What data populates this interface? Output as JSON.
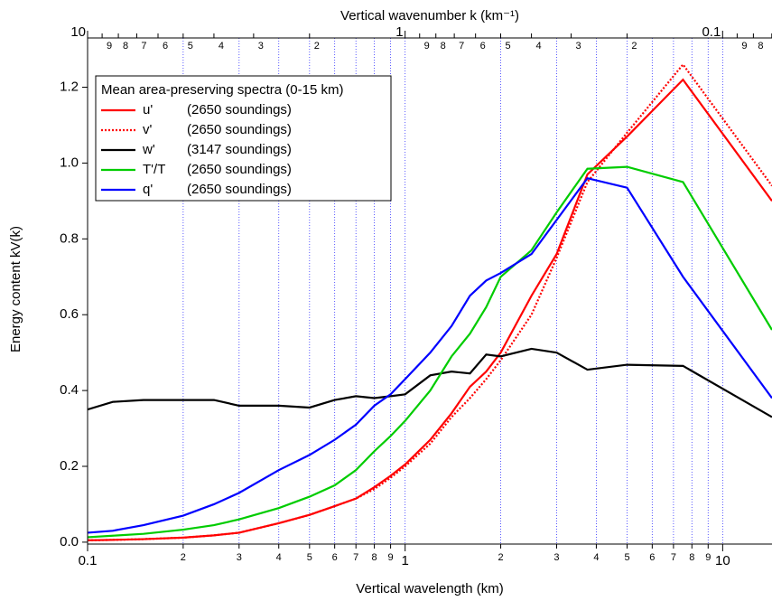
{
  "chart_data": {
    "type": "line",
    "xlabel": "Vertical wavelength (km)",
    "ylabel": "Energy content kV(k)",
    "x2label": "Vertical wavenumber k (km⁻¹)",
    "legend_title": "Mean area-preserving spectra (0-15 km)",
    "xscale": "log",
    "xlim": [
      0.1,
      14.3
    ],
    "ylim": [
      -0.005,
      1.33
    ],
    "x2lim": [
      10,
      0.0699
    ],
    "xticks": [
      0.1,
      {
        "value": 0.2,
        "label": "2"
      },
      {
        "value": 0.3,
        "label": "3"
      },
      {
        "value": 0.4,
        "label": "4"
      },
      {
        "value": 0.5,
        "label": "5"
      },
      {
        "value": 0.6,
        "label": "6"
      },
      {
        "value": 0.7,
        "label": "7"
      },
      {
        "value": 0.8,
        "label": "8"
      },
      {
        "value": 0.9,
        "label": "9"
      },
      1,
      2,
      3,
      4,
      5,
      6,
      7,
      8,
      9,
      10
    ],
    "x2ticks": [
      10,
      9,
      8,
      7,
      6,
      5,
      4,
      3,
      2,
      1,
      {
        "value": 0.9,
        "label": "9"
      },
      {
        "value": 0.8,
        "label": "8"
      },
      {
        "value": 0.7,
        "label": "7"
      },
      {
        "value": 0.6,
        "label": "6"
      },
      {
        "value": 0.5,
        "label": "5"
      },
      {
        "value": 0.4,
        "label": "4"
      },
      {
        "value": 0.3,
        "label": "3"
      },
      {
        "value": 0.2,
        "label": "2"
      },
      0.1,
      {
        "value": 0.09,
        "label": "9"
      },
      {
        "value": 0.08,
        "label": "8"
      },
      {
        "value": 0.07,
        "label": "7"
      }
    ],
    "yticks": [
      {
        "value": 0,
        "label": "0.0"
      },
      0.2,
      0.4,
      0.6,
      0.8,
      {
        "value": 1,
        "label": "1.0"
      },
      1.2
    ],
    "grid": true,
    "legend": "upper left",
    "x": [
      0.1,
      0.12,
      0.15,
      0.2,
      0.25,
      0.3,
      0.4,
      0.5,
      0.6,
      0.7,
      0.8,
      0.9,
      1,
      1.2,
      1.4,
      1.6,
      1.8,
      2,
      2.5,
      3,
      3.75,
      5,
      7.5,
      14.3
    ],
    "series": [
      {
        "name": "u'",
        "label": "(2650 soundings)",
        "color": "#ff0000",
        "linestyle": "solid",
        "values": [
          0.005,
          0.006,
          0.008,
          0.012,
          0.018,
          0.025,
          0.05,
          0.072,
          0.095,
          0.115,
          0.145,
          0.175,
          0.205,
          0.27,
          0.34,
          0.41,
          0.45,
          0.5,
          0.65,
          0.76,
          0.97,
          1.07,
          1.22,
          0.9
        ]
      },
      {
        "name": "v'",
        "label": "(2650 soundings)",
        "color": "#ff0000",
        "linestyle": "dotted",
        "values": [
          0.005,
          0.006,
          0.008,
          0.012,
          0.018,
          0.025,
          0.05,
          0.072,
          0.095,
          0.115,
          0.14,
          0.17,
          0.2,
          0.26,
          0.33,
          0.38,
          0.43,
          0.48,
          0.6,
          0.75,
          0.95,
          1.08,
          1.26,
          0.94
        ]
      },
      {
        "name": "w'",
        "label": "(3147 soundings)",
        "color": "#000000",
        "linestyle": "solid",
        "values": [
          0.35,
          0.37,
          0.375,
          0.375,
          0.375,
          0.36,
          0.36,
          0.355,
          0.375,
          0.385,
          0.38,
          0.385,
          0.39,
          0.44,
          0.45,
          0.445,
          0.495,
          0.49,
          0.51,
          0.5,
          0.455,
          0.468,
          0.465,
          0.33
        ]
      },
      {
        "name": "T'/T",
        "label": "(2650 soundings)",
        "color": "#00cc00",
        "linestyle": "solid",
        "values": [
          0.013,
          0.017,
          0.022,
          0.033,
          0.045,
          0.06,
          0.09,
          0.12,
          0.15,
          0.19,
          0.24,
          0.28,
          0.32,
          0.4,
          0.49,
          0.55,
          0.62,
          0.7,
          0.77,
          0.87,
          0.985,
          0.99,
          0.95,
          0.56
        ]
      },
      {
        "name": "q'",
        "label": "(2650 soundings)",
        "color": "#0000ff",
        "linestyle": "solid",
        "values": [
          0.025,
          0.03,
          0.045,
          0.07,
          0.1,
          0.13,
          0.19,
          0.23,
          0.27,
          0.31,
          0.36,
          0.39,
          0.43,
          0.5,
          0.57,
          0.65,
          0.69,
          0.71,
          0.76,
          0.85,
          0.96,
          0.935,
          0.7,
          0.38
        ]
      }
    ]
  }
}
